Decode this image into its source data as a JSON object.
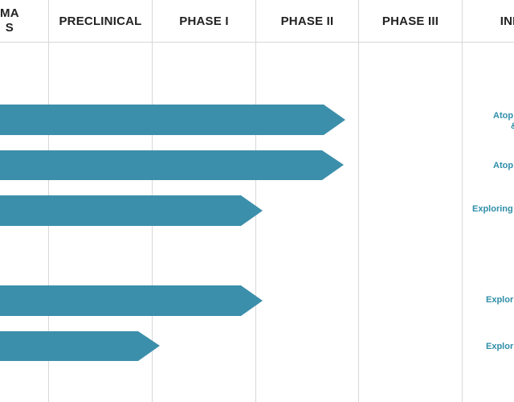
{
  "colors": {
    "bar": "#3c8fab",
    "indication_text": "#2f8ea8",
    "grid": "#d8d8d8"
  },
  "headers": {
    "col0_line1": "MA",
    "col0_line2": "S",
    "preclinical": "PRECLINICAL",
    "phase1": "PHASE I",
    "phase2": "PHASE II",
    "phase3": "PHASE III",
    "indication": "IND"
  },
  "pipeline": [
    {
      "reaches": "Phase II",
      "progress": 0.93,
      "indication_line1": "Atop",
      "indication_line2": "&"
    },
    {
      "reaches": "Phase II",
      "progress": 0.92,
      "indication_line1": "Atop"
    },
    {
      "reaches": "Phase I",
      "progress": 1.0,
      "indication_line1": "Exploring"
    },
    {
      "reaches": "Phase I",
      "progress": 1.0,
      "indication_line1": "Explor"
    },
    {
      "reaches": "Preclinical",
      "progress": 1.0,
      "indication_line1": "Explor"
    }
  ]
}
